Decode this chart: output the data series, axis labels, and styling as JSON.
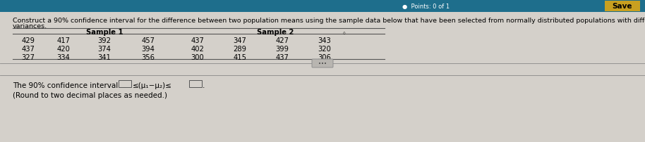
{
  "title_line1": "Construct a 90% confidence interval for the difference between two population means using the sample data below that have been selected from normally distributed populations with different population",
  "title_line2": "variances.",
  "sample1_header": "Sample 1",
  "sample2_header": "Sample 2",
  "sample1_data": [
    [
      429,
      417,
      392,
      457
    ],
    [
      437,
      420,
      374,
      394
    ],
    [
      327,
      334,
      341,
      356
    ]
  ],
  "sample2_data": [
    [
      437,
      347,
      427,
      343
    ],
    [
      402,
      289,
      399,
      320
    ],
    [
      300,
      415,
      437,
      306
    ]
  ],
  "ci_text_before": "The 90% confidence interval is ",
  "ci_middle": "≤(μ₁−μ₂)≤",
  "ci_period": ".",
  "ci_note": "(Round to two decimal places as needed.)",
  "bg_color": "#d4d0ca",
  "content_bg": "#d4d0ca",
  "top_bar_color": "#1e6e8c",
  "text_color": "#000000",
  "table_line_color": "#555555",
  "font_size_title": 6.8,
  "font_size_table": 7.2,
  "font_size_ci": 7.5,
  "save_button_color": "#c8a020",
  "save_text_color": "#000000"
}
